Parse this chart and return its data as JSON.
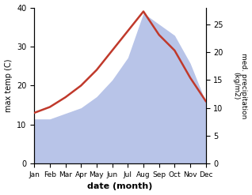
{
  "months": [
    "Jan",
    "Feb",
    "Mar",
    "Apr",
    "May",
    "Jun",
    "Jul",
    "Aug",
    "Sep",
    "Oct",
    "Nov",
    "Dec"
  ],
  "temp": [
    13,
    14.5,
    17,
    20,
    24,
    29,
    34,
    39,
    33,
    29,
    22,
    16
  ],
  "precip": [
    8,
    8,
    9,
    10,
    12,
    15,
    19,
    27,
    25,
    23,
    18,
    11
  ],
  "temp_color": "#c0392b",
  "precip_color": "#b8c4e8",
  "ylabel_left": "max temp (C)",
  "ylabel_right": "med. precipitation\n(kg/m2)",
  "xlabel": "date (month)",
  "ylim_left": [
    0,
    40
  ],
  "ylim_right": [
    0,
    28
  ],
  "yticks_left": [
    0,
    10,
    20,
    30,
    40
  ],
  "yticks_right": [
    0,
    5,
    10,
    15,
    20,
    25
  ],
  "bg_color": "#ffffff"
}
